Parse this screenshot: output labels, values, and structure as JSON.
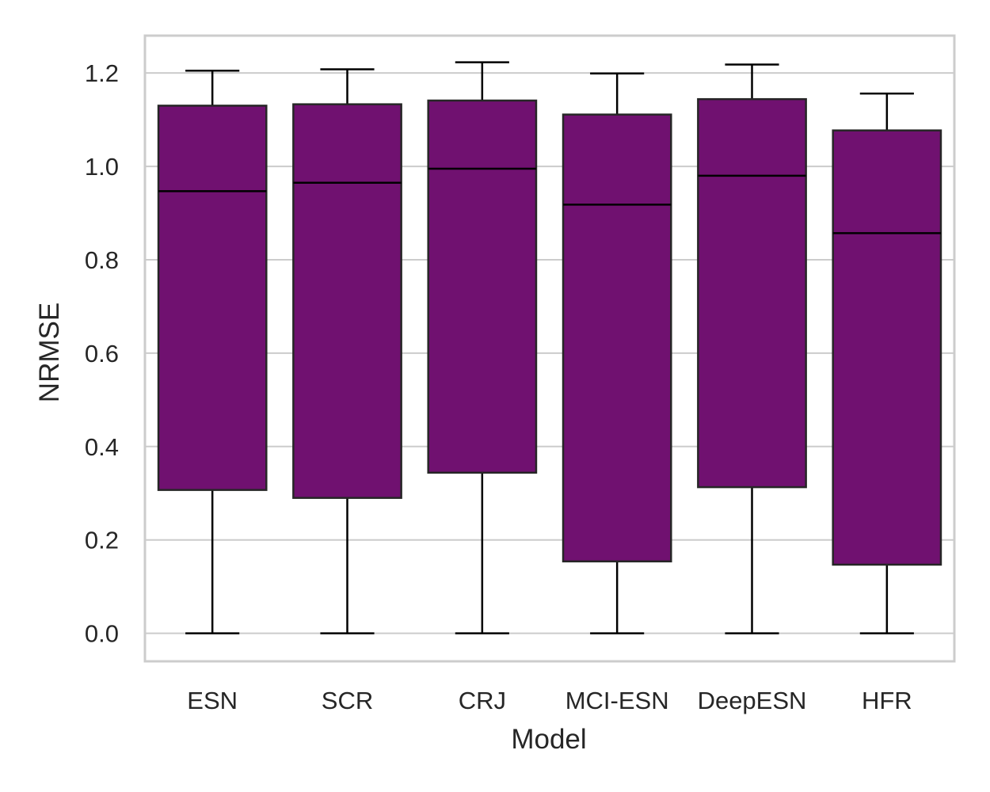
{
  "chart_data": {
    "type": "box",
    "xlabel": "Model",
    "ylabel": "NRMSE",
    "ylim": [
      -0.06,
      1.28
    ],
    "yticks": [
      "0.0",
      "0.2",
      "0.4",
      "0.6",
      "0.8",
      "1.0",
      "1.2"
    ],
    "grid": "horizontal",
    "colors": {
      "box_fill": "#701170",
      "box_edge": "#262626",
      "grid": "#cccccc",
      "frame": "#cccccc"
    },
    "categories": [
      "ESN",
      "SCR",
      "CRJ",
      "MCI-ESN",
      "DeepESN",
      "HFR"
    ],
    "boxes": [
      {
        "min": 0.0,
        "q1": 0.307,
        "median": 0.947,
        "q3": 1.13,
        "max": 1.205
      },
      {
        "min": 0.0,
        "q1": 0.29,
        "median": 0.965,
        "q3": 1.133,
        "max": 1.208
      },
      {
        "min": 0.0,
        "q1": 0.344,
        "median": 0.995,
        "q3": 1.141,
        "max": 1.223
      },
      {
        "min": 0.0,
        "q1": 0.154,
        "median": 0.918,
        "q3": 1.111,
        "max": 1.199
      },
      {
        "min": 0.0,
        "q1": 0.313,
        "median": 0.98,
        "q3": 1.144,
        "max": 1.218
      },
      {
        "min": 0.0,
        "q1": 0.147,
        "median": 0.857,
        "q3": 1.077,
        "max": 1.156
      }
    ]
  }
}
